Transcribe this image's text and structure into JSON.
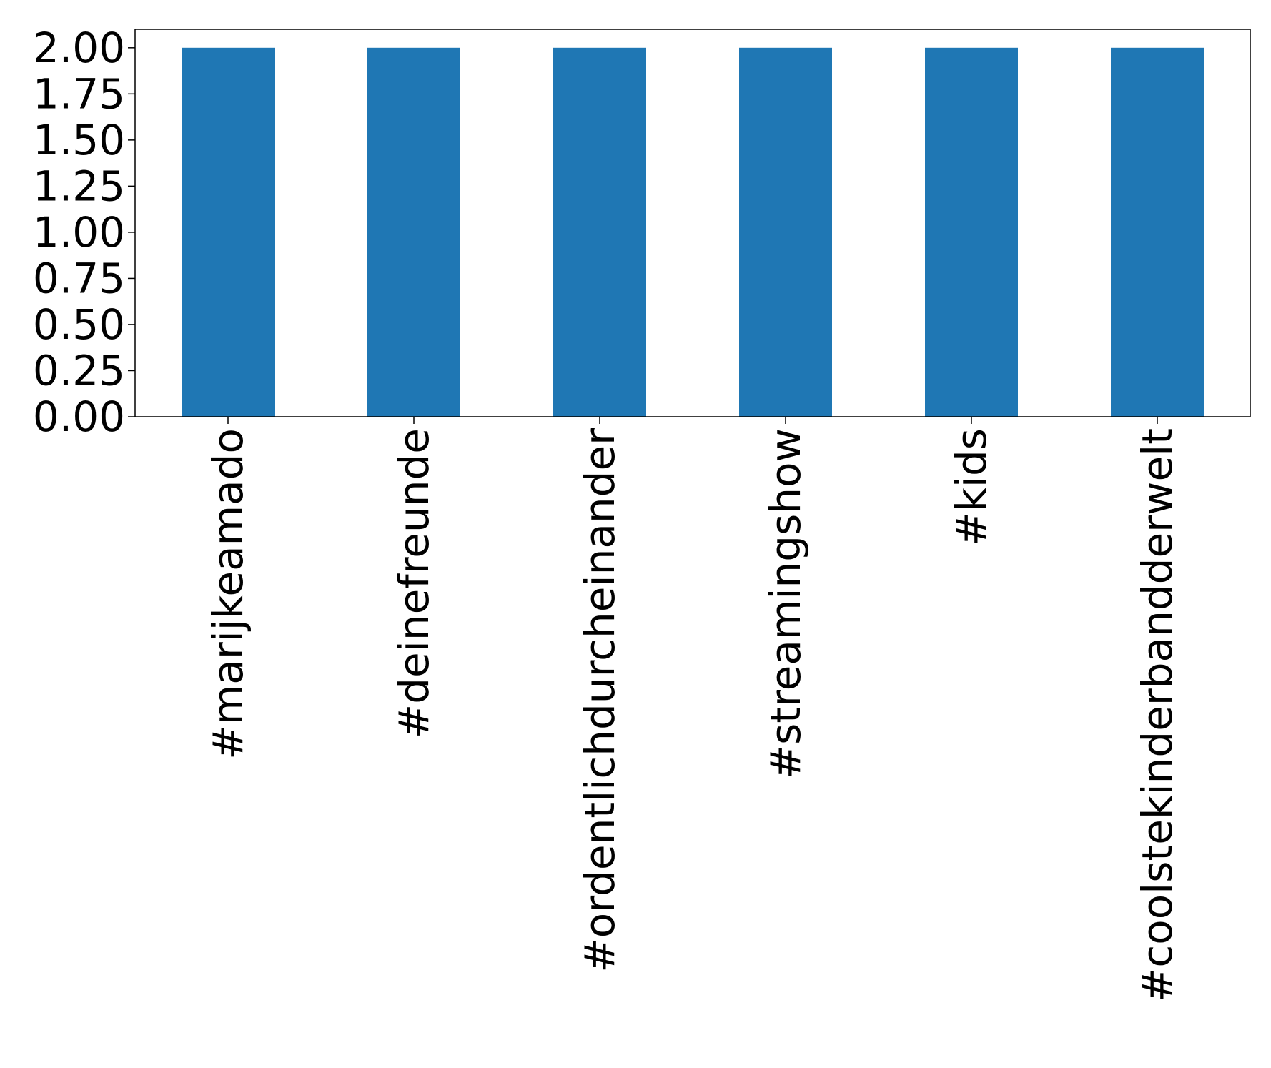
{
  "chart_data": {
    "type": "bar",
    "categories": [
      "#marijkeamado",
      "#deinefreunde",
      "#ordentlichdurcheinander",
      "#streamingshow",
      "#kids",
      "#coolstekinderbandderwelt"
    ],
    "values": [
      2,
      2,
      2,
      2,
      2,
      2
    ],
    "color": "#1f77b4",
    "ylim": [
      0,
      2.1
    ],
    "yticks": [
      {
        "value": 0,
        "label": "0.00"
      },
      {
        "value": 0.25,
        "label": "0.25"
      },
      {
        "value": 0.5,
        "label": "0.50"
      },
      {
        "value": 0.75,
        "label": "0.75"
      },
      {
        "value": 1,
        "label": "1.00"
      },
      {
        "value": 1.25,
        "label": "1.25"
      },
      {
        "value": 1.5,
        "label": "1.50"
      },
      {
        "value": 1.75,
        "label": "1.75"
      },
      {
        "value": 2,
        "label": "2.00"
      }
    ],
    "grid": false
  }
}
